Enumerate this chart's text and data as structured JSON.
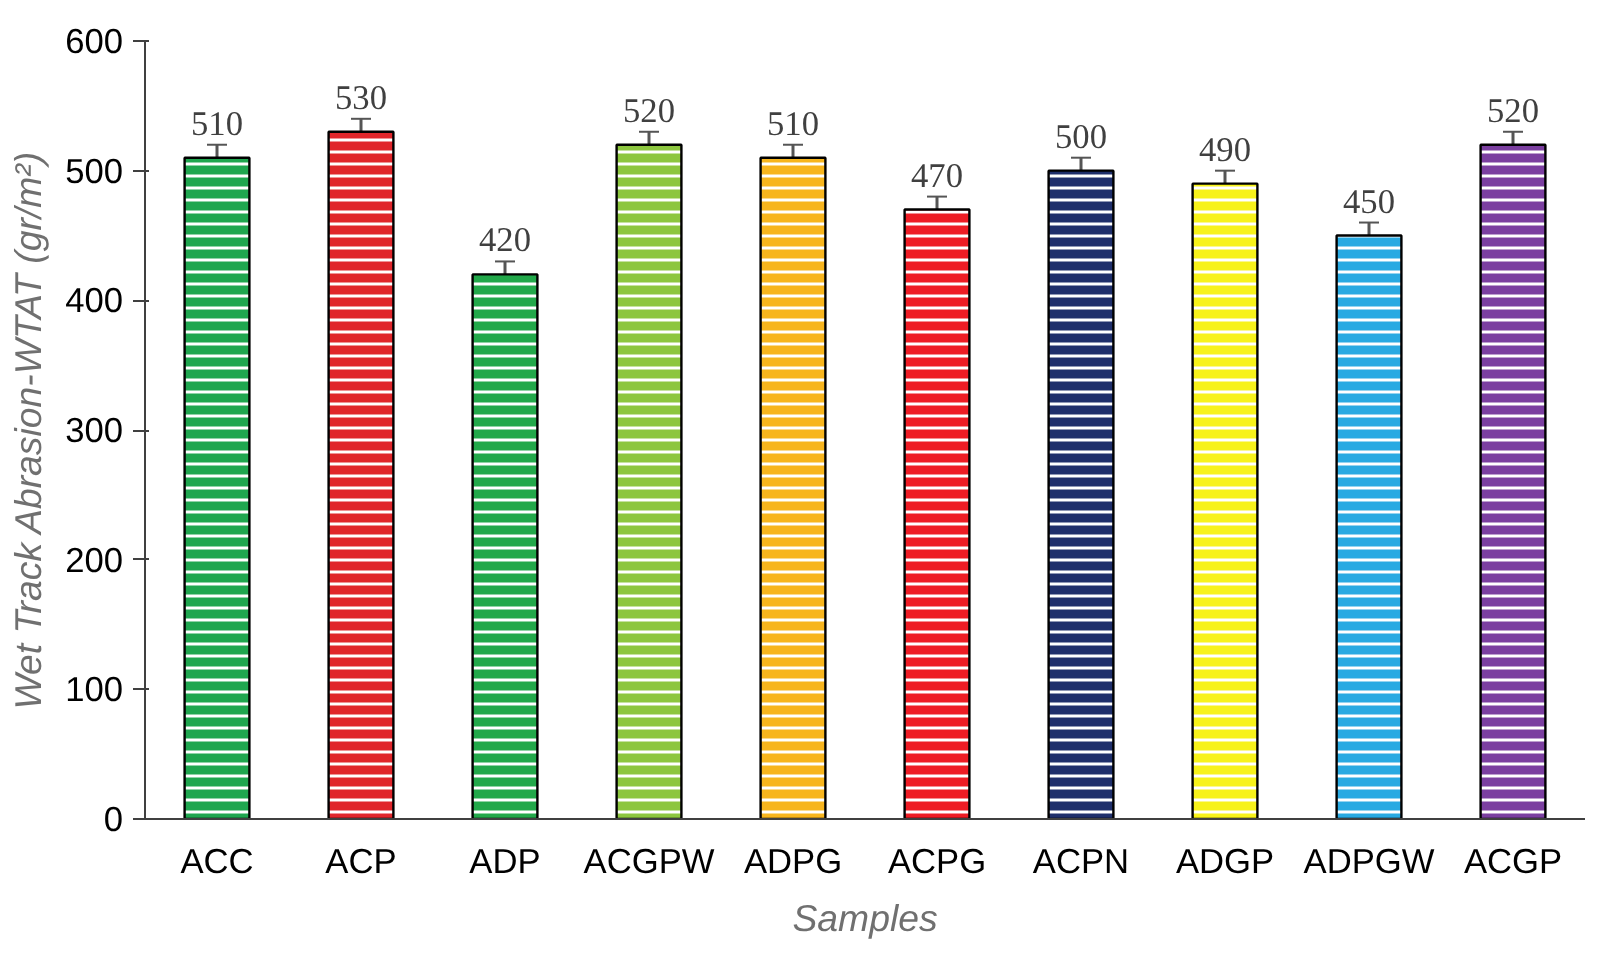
{
  "chart_data": {
    "type": "bar",
    "xlabel": "Samples",
    "ylabel": "Wet Track Abrasion-WTAT (gr/m²)",
    "categories": [
      "ACC",
      "ACP",
      "ADP",
      "ACGPW",
      "ADPG",
      "ACPG",
      "ACPN",
      "ADGP",
      "ADPGW",
      "ACGP"
    ],
    "values": [
      510,
      530,
      420,
      520,
      510,
      470,
      500,
      490,
      450,
      520
    ],
    "errors": [
      10,
      10,
      10,
      10,
      10,
      10,
      10,
      10,
      10,
      10
    ],
    "colors": [
      "#1fa64f",
      "#e0262b",
      "#22a84a",
      "#8dc63f",
      "#f7b51e",
      "#ee1c24",
      "#1f2f6b",
      "#f7f21a",
      "#29aae2",
      "#7b3fa0"
    ],
    "ylim": [
      0,
      600
    ],
    "yticks": [
      0,
      100,
      200,
      300,
      400,
      500,
      600
    ],
    "grid": false,
    "data_labels": true
  }
}
